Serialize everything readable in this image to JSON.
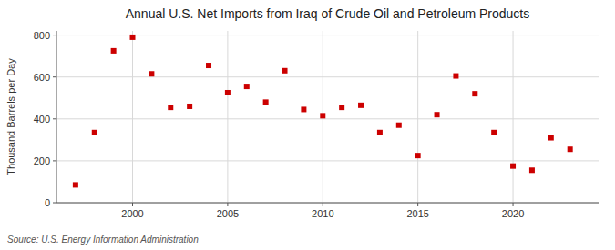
{
  "chart_data": {
    "type": "scatter",
    "title": "Annual U.S. Net Imports from Iraq of Crude Oil and Petroleum Products",
    "y_label": "Thousand Barrels per Day",
    "annotations": [
      "Source: U.S. Energy Information Administration"
    ],
    "x": [
      1997,
      1998,
      1999,
      2000,
      2001,
      2002,
      2003,
      2004,
      2005,
      2006,
      2007,
      2008,
      2009,
      2010,
      2011,
      2012,
      2013,
      2014,
      2015,
      2016,
      2017,
      2018,
      2019,
      2020,
      2021,
      2022,
      2023
    ],
    "values": [
      85,
      335,
      725,
      790,
      615,
      455,
      460,
      655,
      525,
      555,
      480,
      630,
      445,
      415,
      455,
      465,
      335,
      370,
      225,
      420,
      605,
      520,
      335,
      175,
      155,
      310,
      255
    ],
    "color": "#cc0000",
    "marker": "square",
    "xlim": [
      1996.0,
      2024.5
    ],
    "xticks": [
      2000,
      2005,
      2010,
      2015,
      2020
    ],
    "ylim": [
      0,
      820
    ],
    "yticks": [
      0,
      200,
      400,
      600,
      800
    ],
    "grid": true
  }
}
